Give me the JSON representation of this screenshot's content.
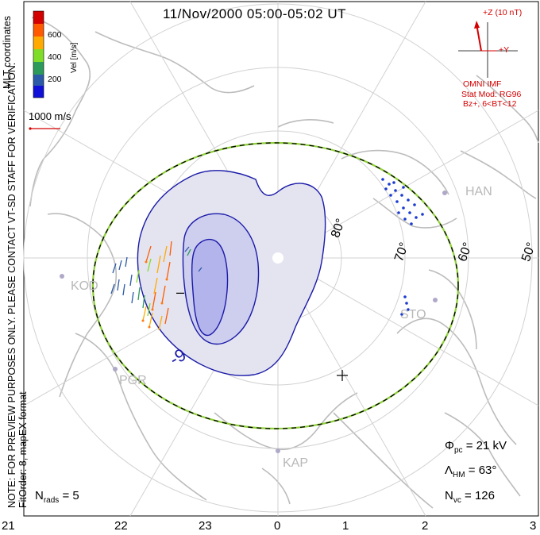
{
  "title": "11/Nov/2000 05:00-05:02 UT",
  "colorbar": {
    "title": "Vel [m/s]",
    "ticks": [
      "600",
      "400",
      "200"
    ],
    "colors": [
      "#d40000",
      "#ff5a00",
      "#ffaa00",
      "#7fdc28",
      "#2c9a5a",
      "#2b5aa8",
      "#1010d8"
    ]
  },
  "coordinates_label": "MLT coordinates",
  "scale_vector_label": "1000 m/s",
  "note_lines": [
    "NOTE: FOR PREVIEW PURPOSES ONLY. PLEASE CONTACT VT-SD STAFF FOR VERIFICATION.",
    "FitOrder: 8, mapEX format"
  ],
  "imf": {
    "z_label": "+Z (10 nT)",
    "y_label": "+Y",
    "source": "OMNI IMF",
    "model_line1": "Stat Mod: RG96",
    "model_line2": "Bz+, 6<BT<12"
  },
  "latitude_labels": [
    "80°",
    "70°",
    "60°",
    "50°"
  ],
  "stations": [
    "HAN",
    "KOD",
    "STO",
    "PGR",
    "KAP"
  ],
  "contour_labels": [
    "-9",
    "–"
  ],
  "stats": {
    "phi_pc_symbol": "Φ",
    "phi_pc_sub": "pc",
    "phi_pc_value": "= 21 kV",
    "lambda_symbol": "Λ",
    "lambda_sub": "HM",
    "lambda_value": "= 63°",
    "nvc_symbol": "N",
    "nvc_sub": "vc",
    "nvc_value": "= 126",
    "nrads_symbol": "N",
    "nrads_sub": "rads",
    "nrads_value": "= 5"
  },
  "mlt_ticks": [
    "21",
    "22",
    "23",
    "0",
    "1",
    "2",
    "3"
  ],
  "colors": {
    "contour": "#1a1aa8",
    "fill_outer": "#e4e4f0",
    "fill_mid": "#ceceef",
    "fill_inner": "#b4b4ec",
    "land": "#bcbcbc",
    "grid": "#d2d2d2",
    "hmb": "#8fd03a"
  }
}
